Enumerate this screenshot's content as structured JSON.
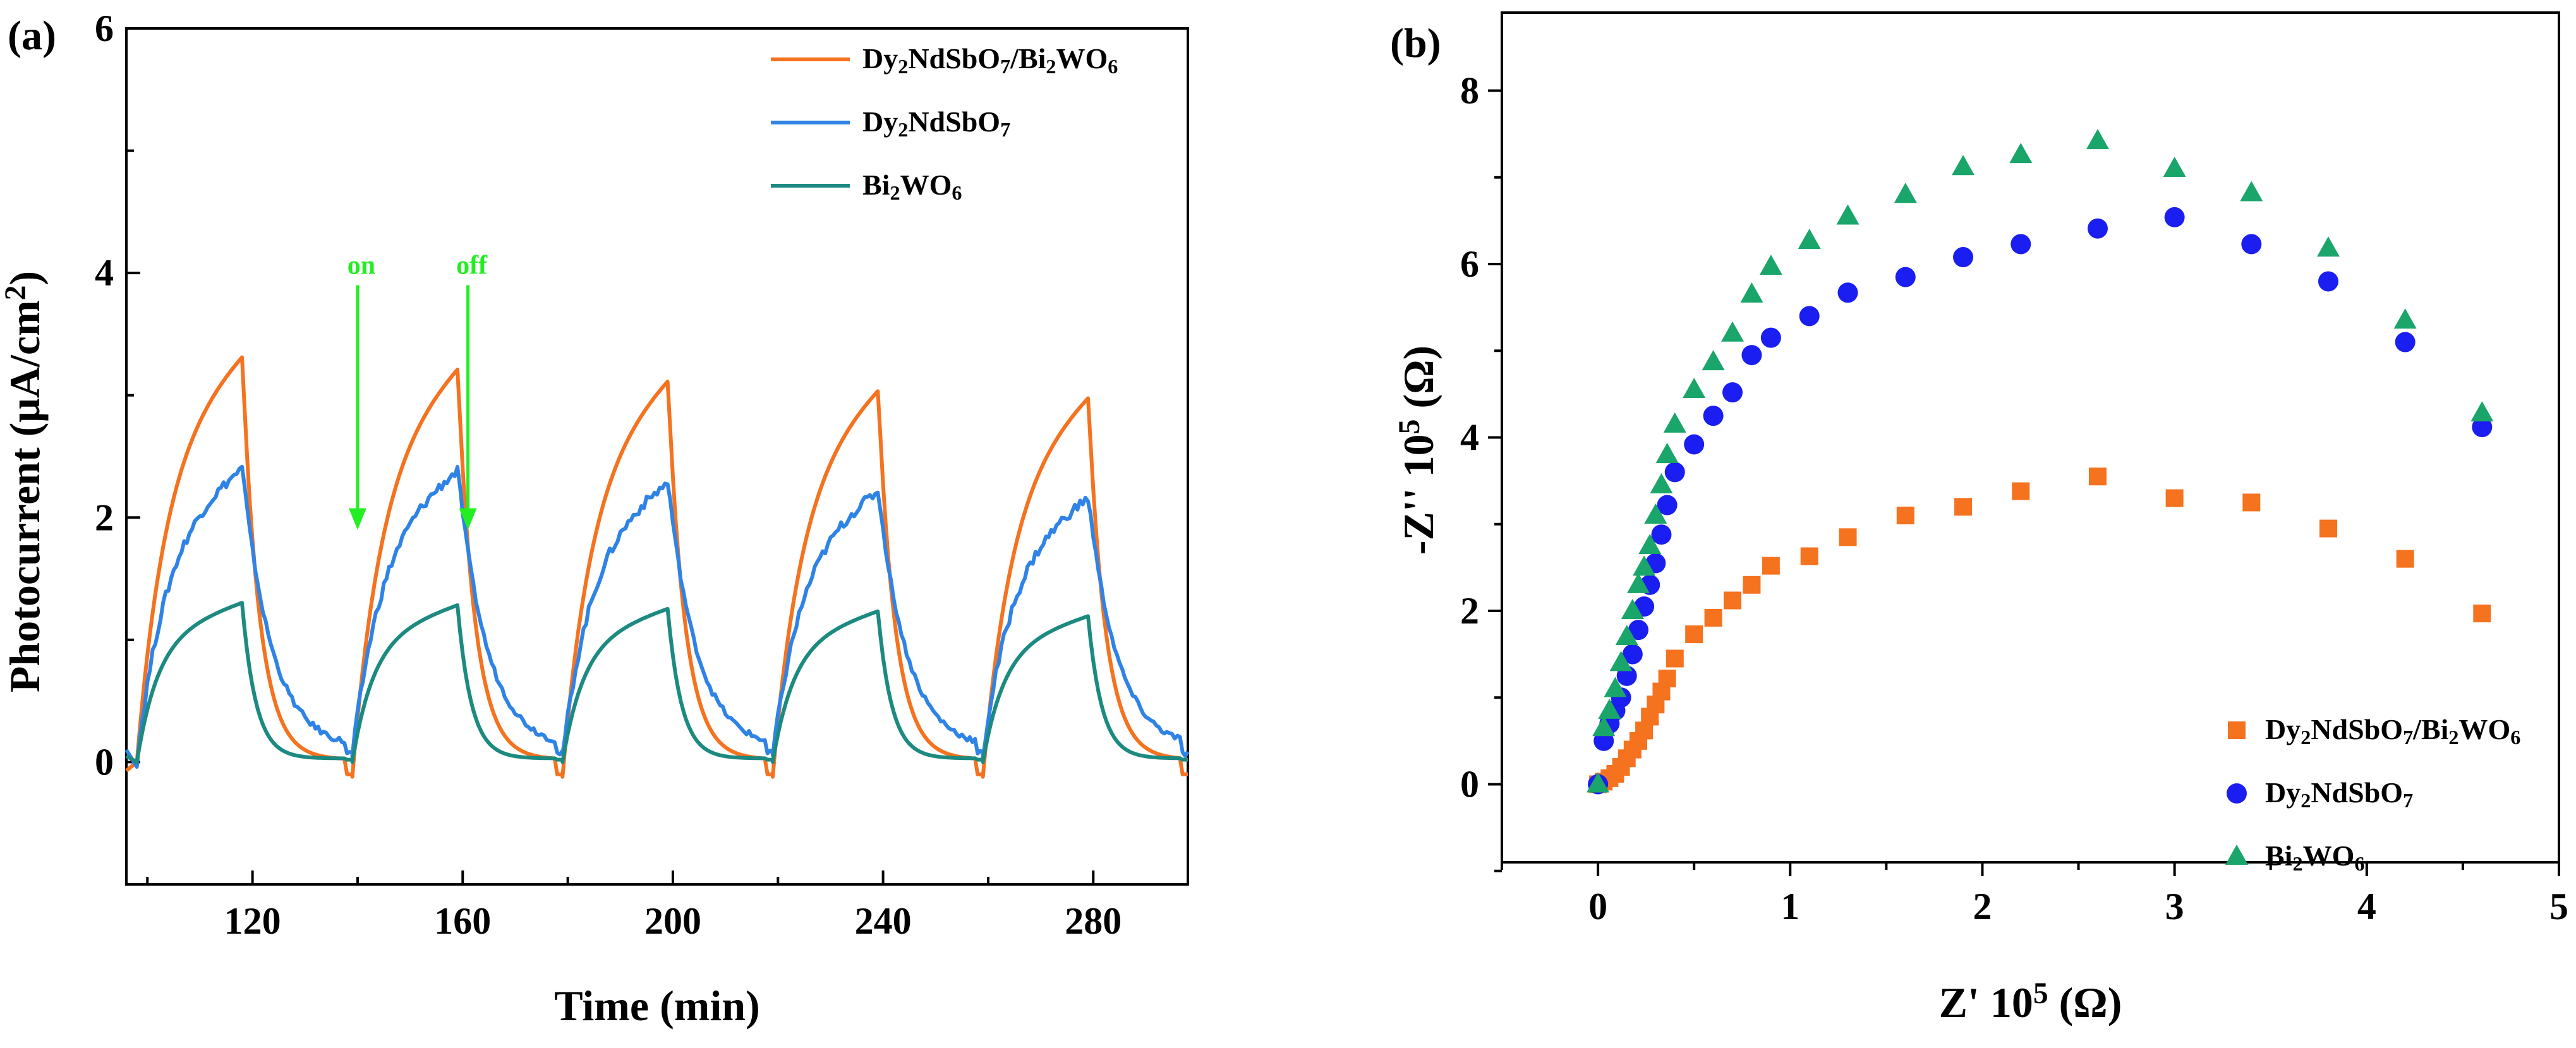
{
  "figure": {
    "panels": [
      "(a)",
      "(b)"
    ]
  },
  "chart_data": [
    {
      "type": "line",
      "panel_label": "(a)",
      "xlabel": "Time (min)",
      "ylabel_parts": [
        "Photocurrent (",
        "μ",
        "A/cm",
        "2",
        ")"
      ],
      "xlim": [
        96,
        298
      ],
      "ylim": [
        -1,
        6
      ],
      "xticks": [
        120,
        160,
        200,
        240,
        280
      ],
      "yticks": [
        0,
        2,
        4,
        6
      ],
      "annotations": [
        {
          "text": "on",
          "x": 140,
          "y_top": 3.9,
          "y_tip": 1.9
        },
        {
          "text": "off",
          "x": 161,
          "y_top": 3.9,
          "y_tip": 1.9
        }
      ],
      "legend_position": "top-right",
      "series": [
        {
          "name": "Dy2NdSbO7/Bi2WO6",
          "color": "#f5721f",
          "peaks": [
            3.38,
            3.28,
            3.18,
            3.1,
            3.04
          ],
          "baseline": -0.12
        },
        {
          "name": "Dy2NdSbO7",
          "color": "#2f83e6",
          "peaks": [
            2.45,
            2.43,
            2.33,
            2.26,
            2.2
          ],
          "baseline": 0.05
        },
        {
          "name": "Bi2WO6",
          "color": "#1c8a80",
          "peaks": [
            1.31,
            1.29,
            1.26,
            1.24,
            1.2
          ],
          "baseline": 0.0
        }
      ],
      "cycle": {
        "on_times": [
          98,
          139,
          179,
          219,
          259
        ],
        "off_times": [
          118,
          159,
          199,
          239,
          279
        ]
      },
      "legend": [
        {
          "key": "s1",
          "parts": [
            "Dy",
            "2",
            "NdSbO",
            "7",
            "/Bi",
            "2",
            "WO",
            "6"
          ]
        },
        {
          "key": "s2",
          "parts": [
            "Dy",
            "2",
            "NdSbO",
            "7"
          ]
        },
        {
          "key": "s3",
          "parts": [
            "Bi",
            "2",
            "WO",
            "6"
          ]
        }
      ]
    },
    {
      "type": "scatter",
      "panel_label": "(b)",
      "xlabel_parts": [
        "Z' 10",
        "5",
        " (Ω)"
      ],
      "ylabel_parts": [
        "-Z'' 10",
        "5",
        " (Ω)"
      ],
      "xlim": [
        -0.5,
        5.0
      ],
      "ylim": [
        -0.9,
        8.9
      ],
      "xticks": [
        0,
        1,
        2,
        3,
        4,
        5
      ],
      "yticks": [
        0,
        2,
        4,
        6,
        8
      ],
      "legend_position": "bottom-right",
      "series": [
        {
          "name": "Dy2NdSbO7/Bi2WO6",
          "marker": "square",
          "color": "#f5721f",
          "x": [
            0.0,
            0.03,
            0.06,
            0.09,
            0.12,
            0.15,
            0.18,
            0.21,
            0.24,
            0.27,
            0.3,
            0.33,
            0.36,
            0.4,
            0.5,
            0.6,
            0.7,
            0.8,
            0.9,
            1.1,
            1.3,
            1.6,
            1.9,
            2.2,
            2.6,
            3.0,
            3.4,
            3.8,
            4.2,
            4.6
          ],
          "y": [
            0.0,
            0.03,
            0.07,
            0.12,
            0.2,
            0.3,
            0.4,
            0.5,
            0.62,
            0.78,
            0.92,
            1.07,
            1.22,
            1.45,
            1.73,
            1.92,
            2.12,
            2.3,
            2.52,
            2.63,
            2.85,
            3.1,
            3.2,
            3.38,
            3.55,
            3.3,
            3.25,
            2.95,
            2.6,
            1.97
          ]
        },
        {
          "name": "Dy2NdSbO7",
          "marker": "circle",
          "color": "#1a1ef0",
          "x": [
            0.0,
            0.03,
            0.06,
            0.09,
            0.12,
            0.15,
            0.18,
            0.21,
            0.24,
            0.27,
            0.3,
            0.33,
            0.36,
            0.4,
            0.5,
            0.6,
            0.7,
            0.8,
            0.9,
            1.1,
            1.3,
            1.6,
            1.9,
            2.2,
            2.6,
            3.0,
            3.4,
            3.8,
            4.2,
            4.6
          ],
          "y": [
            0.0,
            0.5,
            0.7,
            0.85,
            1.0,
            1.25,
            1.5,
            1.78,
            2.05,
            2.3,
            2.55,
            2.88,
            3.22,
            3.6,
            3.92,
            4.25,
            4.52,
            4.95,
            5.15,
            5.4,
            5.67,
            5.85,
            6.08,
            6.23,
            6.41,
            6.54,
            6.23,
            5.8,
            5.1,
            4.12
          ]
        },
        {
          "name": "Bi2WO6",
          "marker": "triangle",
          "color": "#1aa56a",
          "x": [
            0.0,
            0.03,
            0.06,
            0.09,
            0.12,
            0.15,
            0.18,
            0.21,
            0.24,
            0.27,
            0.3,
            0.33,
            0.36,
            0.4,
            0.5,
            0.6,
            0.7,
            0.8,
            0.9,
            1.1,
            1.3,
            1.6,
            1.9,
            2.2,
            2.6,
            3.0,
            3.4,
            3.8,
            4.2,
            4.6
          ],
          "y": [
            0.0,
            0.65,
            0.85,
            1.1,
            1.4,
            1.7,
            2.0,
            2.3,
            2.5,
            2.75,
            3.1,
            3.45,
            3.8,
            4.15,
            4.55,
            4.87,
            5.2,
            5.65,
            5.97,
            6.27,
            6.55,
            6.8,
            7.12,
            7.26,
            7.42,
            7.1,
            6.82,
            6.18,
            5.35,
            4.28
          ]
        }
      ],
      "legend": [
        {
          "key": "s1",
          "parts": [
            "Dy",
            "2",
            "NdSbO",
            "7",
            "/Bi",
            "2",
            "WO",
            "6"
          ]
        },
        {
          "key": "s2",
          "parts": [
            "Dy",
            "2",
            "NdSbO",
            "7"
          ]
        },
        {
          "key": "s3",
          "parts": [
            "Bi",
            "2",
            "WO",
            "6"
          ]
        }
      ]
    }
  ]
}
